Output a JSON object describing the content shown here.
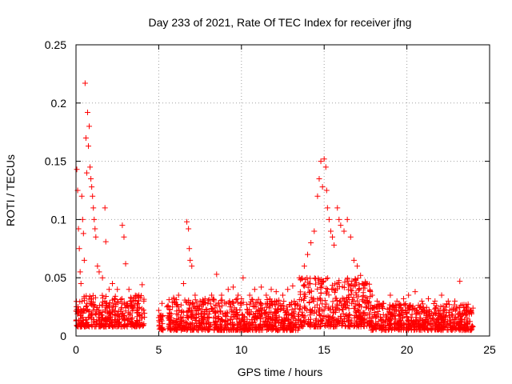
{
  "chart_data": {
    "type": "scatter",
    "title": "Day 233 of 2021, Rate Of TEC Index for receiver jfng",
    "xlabel": "GPS time / hours",
    "ylabel": "ROTI / TECUs",
    "xlim": [
      0,
      25
    ],
    "ylim": [
      0,
      0.25
    ],
    "xticks": [
      0,
      5,
      10,
      15,
      20,
      25
    ],
    "xtick_labels": [
      "0",
      "5",
      "10",
      "15",
      "20",
      "25"
    ],
    "yticks": [
      0,
      0.05,
      0.1,
      0.15,
      0.2,
      0.25
    ],
    "ytick_labels": [
      "0",
      "0.05",
      "0.1",
      "0.15",
      "0.2",
      "0.25"
    ],
    "grid": true,
    "marker": "+",
    "color": "#ff0000",
    "series": [
      {
        "name": "ROTI",
        "points": [
          [
            0.05,
            0.143
          ],
          [
            0.1,
            0.125
          ],
          [
            0.15,
            0.092
          ],
          [
            0.2,
            0.075
          ],
          [
            0.25,
            0.055
          ],
          [
            0.3,
            0.045
          ],
          [
            0.35,
            0.12
          ],
          [
            0.4,
            0.1
          ],
          [
            0.45,
            0.088
          ],
          [
            0.5,
            0.065
          ],
          [
            0.55,
            0.217
          ],
          [
            0.6,
            0.17
          ],
          [
            0.65,
            0.14
          ],
          [
            0.7,
            0.192
          ],
          [
            0.75,
            0.163
          ],
          [
            0.8,
            0.18
          ],
          [
            0.85,
            0.145
          ],
          [
            0.9,
            0.135
          ],
          [
            0.95,
            0.128
          ],
          [
            1.0,
            0.12
          ],
          [
            1.05,
            0.11
          ],
          [
            1.1,
            0.1
          ],
          [
            1.15,
            0.092
          ],
          [
            1.2,
            0.085
          ],
          [
            1.3,
            0.06
          ],
          [
            1.4,
            0.055
          ],
          [
            1.6,
            0.05
          ],
          [
            1.75,
            0.11
          ],
          [
            1.8,
            0.081
          ],
          [
            2.0,
            0.04
          ],
          [
            2.2,
            0.045
          ],
          [
            2.5,
            0.04
          ],
          [
            2.8,
            0.095
          ],
          [
            2.9,
            0.085
          ],
          [
            3.0,
            0.062
          ],
          [
            3.2,
            0.04
          ],
          [
            3.5,
            0.03
          ],
          [
            3.8,
            0.035
          ],
          [
            4.0,
            0.044
          ],
          [
            4.1,
            0.03
          ],
          [
            5.0,
            0.022
          ],
          [
            5.2,
            0.028
          ],
          [
            5.5,
            0.025
          ],
          [
            5.9,
            0.033
          ],
          [
            6.2,
            0.035
          ],
          [
            6.5,
            0.045
          ],
          [
            6.7,
            0.098
          ],
          [
            6.8,
            0.092
          ],
          [
            6.85,
            0.075
          ],
          [
            6.9,
            0.065
          ],
          [
            7.0,
            0.06
          ],
          [
            7.2,
            0.035
          ],
          [
            7.5,
            0.03
          ],
          [
            7.8,
            0.032
          ],
          [
            8.2,
            0.035
          ],
          [
            8.5,
            0.053
          ],
          [
            8.8,
            0.035
          ],
          [
            9.2,
            0.04
          ],
          [
            9.5,
            0.042
          ],
          [
            9.8,
            0.035
          ],
          [
            10.1,
            0.05
          ],
          [
            10.5,
            0.035
          ],
          [
            10.8,
            0.04
          ],
          [
            11.2,
            0.042
          ],
          [
            11.5,
            0.035
          ],
          [
            11.8,
            0.04
          ],
          [
            12.1,
            0.038
          ],
          [
            12.5,
            0.035
          ],
          [
            12.8,
            0.04
          ],
          [
            13.1,
            0.043
          ],
          [
            13.5,
            0.05
          ],
          [
            13.8,
            0.06
          ],
          [
            14.0,
            0.07
          ],
          [
            14.2,
            0.08
          ],
          [
            14.4,
            0.09
          ],
          [
            14.6,
            0.12
          ],
          [
            14.7,
            0.135
          ],
          [
            14.8,
            0.15
          ],
          [
            14.9,
            0.128
          ],
          [
            15.0,
            0.152
          ],
          [
            15.1,
            0.145
          ],
          [
            15.15,
            0.125
          ],
          [
            15.2,
            0.11
          ],
          [
            15.3,
            0.1
          ],
          [
            15.4,
            0.09
          ],
          [
            15.5,
            0.085
          ],
          [
            15.6,
            0.078
          ],
          [
            15.8,
            0.11
          ],
          [
            15.9,
            0.1
          ],
          [
            16.0,
            0.095
          ],
          [
            16.2,
            0.09
          ],
          [
            16.4,
            0.1
          ],
          [
            16.6,
            0.085
          ],
          [
            16.8,
            0.065
          ],
          [
            17.0,
            0.06
          ],
          [
            17.2,
            0.052
          ],
          [
            17.5,
            0.045
          ],
          [
            17.9,
            0.035
          ],
          [
            18.2,
            0.03
          ],
          [
            18.6,
            0.028
          ],
          [
            19.0,
            0.035
          ],
          [
            19.4,
            0.03
          ],
          [
            19.8,
            0.032
          ],
          [
            20.1,
            0.035
          ],
          [
            20.5,
            0.038
          ],
          [
            20.9,
            0.03
          ],
          [
            21.3,
            0.032
          ],
          [
            21.7,
            0.03
          ],
          [
            22.1,
            0.035
          ],
          [
            22.5,
            0.03
          ],
          [
            22.9,
            0.03
          ],
          [
            23.2,
            0.047
          ],
          [
            23.6,
            0.025
          ],
          [
            23.9,
            0.02
          ]
        ],
        "baseline_segments": [
          {
            "x": [
              0.0,
              4.15
            ],
            "y": [
              0.008,
              0.035
            ]
          },
          {
            "x": [
              5.0,
              5.3
            ],
            "y": [
              0.005,
              0.018
            ]
          },
          {
            "x": [
              5.55,
              13.5
            ],
            "y": [
              0.005,
              0.032
            ]
          },
          {
            "x": [
              13.5,
              17.8
            ],
            "y": [
              0.008,
              0.05
            ]
          },
          {
            "x": [
              17.8,
              24.0
            ],
            "y": [
              0.005,
              0.028
            ]
          }
        ]
      }
    ]
  }
}
